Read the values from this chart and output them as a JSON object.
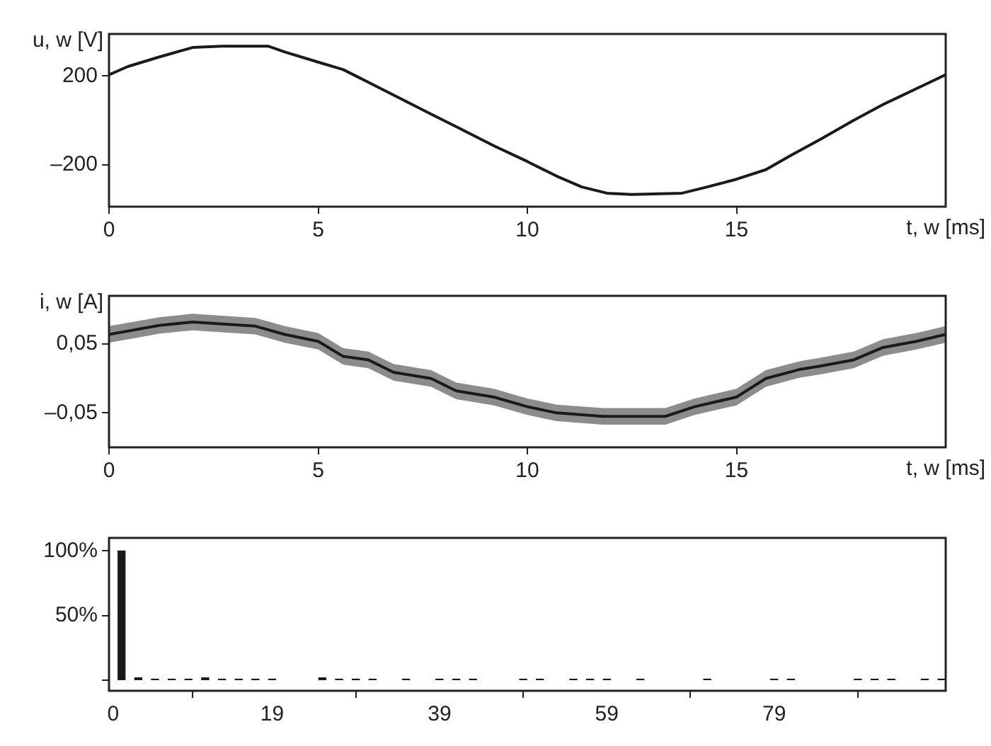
{
  "chart_data": [
    {
      "type": "line",
      "ylabel": "u, w [V]",
      "xlabel": "t, w [ms]",
      "xlim": [
        0,
        20
      ],
      "xticks": [
        0,
        5,
        10,
        15
      ],
      "ylim": [
        -390,
        390
      ],
      "yticks": [
        {
          "value": -200,
          "label": "–200"
        },
        200
      ],
      "grid": false,
      "legend": false,
      "marker": "none",
      "line_style": "solid",
      "series": [
        {
          "color": "#1a1a1a",
          "x": [
            0,
            0.45,
            1.2,
            2.0,
            2.7,
            3.8,
            4.2,
            5.0,
            5.6,
            6.2,
            6.8,
            7.7,
            8.3,
            9.2,
            10.0,
            10.7,
            11.3,
            11.9,
            12.5,
            13.7,
            14.3,
            15.0,
            15.7,
            16.3,
            17.0,
            17.8,
            18.5,
            19.3,
            20
          ],
          "values": [
            206,
            243,
            286,
            329,
            335,
            335,
            309,
            263,
            229,
            172,
            114,
            28,
            -29,
            -115,
            -186,
            -252,
            -301,
            -329,
            -335,
            -329,
            -301,
            -266,
            -223,
            -158,
            -86,
            0,
            71,
            143,
            206
          ]
        }
      ]
    },
    {
      "type": "line",
      "ylabel": "i, w [A]",
      "xlabel": "t, w [ms]",
      "xlim": [
        0,
        20
      ],
      "xticks": [
        0,
        5,
        10,
        15
      ],
      "ylim": [
        -0.1,
        0.12
      ],
      "yticks": [
        {
          "value": -0.05,
          "label": "–0,05"
        },
        {
          "value": 0.05,
          "label": "0,05"
        }
      ],
      "grid": false,
      "legend": false,
      "marker": "none",
      "line_style": "solid",
      "series": [
        {
          "color": "#1a1a1a",
          "x": [
            0,
            1.2,
            2.0,
            3.5,
            4.2,
            5.0,
            5.6,
            6.2,
            6.8,
            7.7,
            8.3,
            9.2,
            10.0,
            10.7,
            11.8,
            13.3,
            14.0,
            15.0,
            15.7,
            16.5,
            17.0,
            17.8,
            18.5,
            19.3,
            20
          ],
          "values": [
            0.064,
            0.077,
            0.082,
            0.076,
            0.064,
            0.054,
            0.032,
            0.027,
            0.009,
            0.0,
            -0.018,
            -0.027,
            -0.041,
            -0.05,
            -0.055,
            -0.055,
            -0.041,
            -0.027,
            0.0,
            0.013,
            0.018,
            0.027,
            0.045,
            0.054,
            0.064
          ],
          "lower": [
            0.052,
            0.065,
            0.07,
            0.064,
            0.052,
            0.042,
            0.02,
            0.015,
            -0.003,
            -0.012,
            -0.03,
            -0.039,
            -0.053,
            -0.062,
            -0.067,
            -0.067,
            -0.053,
            -0.039,
            -0.012,
            0.001,
            0.006,
            0.015,
            0.033,
            0.042,
            0.052
          ],
          "upper": [
            0.076,
            0.089,
            0.094,
            0.088,
            0.076,
            0.066,
            0.044,
            0.039,
            0.021,
            0.012,
            -0.006,
            -0.015,
            -0.029,
            -0.038,
            -0.043,
            -0.043,
            -0.029,
            -0.015,
            0.012,
            0.025,
            0.03,
            0.039,
            0.057,
            0.066,
            0.076
          ]
        }
      ]
    },
    {
      "type": "bar",
      "xlim": [
        -0.5,
        99.5
      ],
      "xticks": [
        0,
        19,
        39,
        59,
        79
      ],
      "ylim": [
        -8,
        110
      ],
      "yticks": [
        {
          "value": 0,
          "label": null
        },
        {
          "value": 50,
          "label": "50%"
        },
        {
          "value": 100,
          "label": "100%"
        }
      ],
      "grid": false,
      "legend": false,
      "color": "#1a1a1a",
      "x": [
        1,
        3,
        5,
        7,
        9,
        11,
        13,
        15,
        17,
        19,
        25,
        27,
        29,
        31,
        35,
        39,
        41,
        43,
        49,
        51,
        55,
        57,
        59,
        63,
        71,
        79,
        81,
        89,
        91,
        93,
        97,
        99
      ],
      "values": [
        100,
        2,
        1,
        1,
        1,
        2,
        1,
        1,
        1,
        1,
        2,
        1,
        1,
        1,
        1,
        1,
        1,
        1,
        1,
        1,
        1,
        1,
        1,
        1,
        1,
        1,
        1,
        1,
        1,
        1,
        1,
        1
      ]
    }
  ]
}
